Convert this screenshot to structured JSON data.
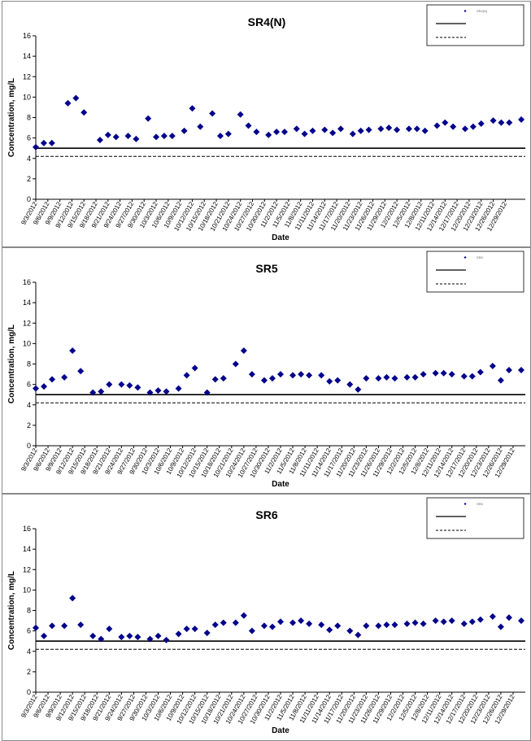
{
  "chart_data": [
    {
      "type": "scatter",
      "title": "SR4(N)",
      "xlabel": "Date",
      "ylabel": "Concentration, mg/L",
      "ylim": [
        0,
        16
      ],
      "yticks": [
        "0",
        "2",
        "4",
        "6",
        "8",
        "10",
        "12",
        "14",
        "16"
      ],
      "x_tick_labels": [
        "9/3/2012",
        "9/6/2012",
        "9/9/2012",
        "9/12/2012",
        "9/15/2012",
        "9/18/2012",
        "9/21/2012",
        "9/24/2012",
        "9/27/2012",
        "9/30/2012",
        "10/3/2012",
        "10/6/2012",
        "10/9/2012",
        "10/12/2012",
        "10/15/2012",
        "10/18/2012",
        "10/21/2012",
        "10/24/2012",
        "10/27/2012",
        "10/30/2012",
        "11/2/2012",
        "11/5/2012",
        "11/8/2012",
        "11/11/2012",
        "11/14/2012",
        "11/17/2012",
        "11/20/2012",
        "11/23/2012",
        "11/26/2012",
        "11/29/2012",
        "12/2/2012",
        "12/5/2012",
        "12/8/2012",
        "12/11/2012",
        "12/14/2012",
        "12/17/2012",
        "12/20/2012",
        "12/23/2012",
        "12/26/2012",
        "12/29/2012"
      ],
      "series": [
        {
          "name": "SR4(N)",
          "marker": "diamond",
          "color": "#00008B",
          "x": [
            "9/3/2012",
            "9/5/2012",
            "9/7/2012",
            "9/11/2012",
            "9/13/2012",
            "9/15/2012",
            "9/19/2012",
            "9/21/2012",
            "9/23/2012",
            "9/26/2012",
            "9/28/2012",
            "10/1/2012",
            "10/3/2012",
            "10/5/2012",
            "10/7/2012",
            "10/10/2012",
            "10/12/2012",
            "10/14/2012",
            "10/17/2012",
            "10/19/2012",
            "10/21/2012",
            "10/24/2012",
            "10/26/2012",
            "10/28/2012",
            "10/31/2012",
            "11/2/2012",
            "11/4/2012",
            "11/7/2012",
            "11/9/2012",
            "11/11/2012",
            "11/14/2012",
            "11/16/2012",
            "11/18/2012",
            "11/21/2012",
            "11/23/2012",
            "11/25/2012",
            "11/28/2012",
            "11/30/2012",
            "12/2/2012",
            "12/5/2012",
            "12/7/2012",
            "12/9/2012",
            "12/12/2012",
            "12/14/2012",
            "12/16/2012",
            "12/19/2012",
            "12/21/2012",
            "12/23/2012",
            "12/26/2012",
            "12/28/2012",
            "12/30/2012",
            "1/2/2013"
          ],
          "y": [
            5.1,
            5.5,
            5.5,
            9.4,
            9.9,
            8.5,
            5.8,
            6.3,
            6.1,
            6.2,
            5.9,
            7.9,
            6.1,
            6.2,
            6.2,
            6.7,
            8.9,
            7.1,
            8.4,
            6.2,
            6.4,
            8.3,
            7.2,
            6.6,
            6.3,
            6.6,
            6.6,
            6.9,
            6.4,
            6.7,
            6.8,
            6.5,
            6.9,
            6.4,
            6.7,
            6.8,
            6.9,
            7.0,
            6.8,
            6.9,
            6.9,
            6.7,
            7.2,
            7.5,
            7.1,
            6.9,
            7.1,
            7.4,
            7.7,
            7.5,
            7.5,
            7.8
          ]
        }
      ],
      "reference_lines": [
        {
          "value": 5.0,
          "style": "solid",
          "color": "#000000"
        },
        {
          "value": 4.2,
          "style": "dashed",
          "color": "#000000"
        }
      ],
      "legend": "top-right"
    },
    {
      "type": "scatter",
      "title": "SR5",
      "xlabel": "Date",
      "ylabel": "Concentration, mg/L",
      "ylim": [
        0,
        16
      ],
      "yticks": [
        "0",
        "2",
        "4",
        "6",
        "8",
        "10",
        "12",
        "14",
        "16"
      ],
      "x_tick_labels": [
        "9/3/2012",
        "9/6/2012",
        "9/9/2012",
        "9/12/2012",
        "9/15/2012",
        "9/18/2012",
        "9/21/2012",
        "9/24/2012",
        "9/27/2012",
        "9/30/2012",
        "10/3/2012",
        "10/6/2012",
        "10/9/2012",
        "10/12/2012",
        "10/15/2012",
        "10/18/2012",
        "10/21/2012",
        "10/24/2012",
        "10/27/2012",
        "10/30/2012",
        "11/2/2012",
        "11/5/2012",
        "11/8/2012",
        "11/11/2012",
        "11/14/2012",
        "11/17/2012",
        "11/20/2012",
        "11/23/2012",
        "11/26/2012",
        "11/29/2012",
        "12/2/2012",
        "12/5/2012",
        "12/8/2012",
        "12/11/2012",
        "12/14/2012",
        "12/17/2012",
        "12/20/2012",
        "12/23/2012",
        "12/26/2012",
        "12/29/2012"
      ],
      "series": [
        {
          "name": "SR5",
          "marker": "diamond",
          "color": "#00008B",
          "x": [
            "9/3/2012",
            "9/5/2012",
            "9/7/2012",
            "9/10/2012",
            "9/12/2012",
            "9/14/2012",
            "9/17/2012",
            "9/19/2012",
            "9/21/2012",
            "9/24/2012",
            "9/26/2012",
            "9/28/2012",
            "10/1/2012",
            "10/3/2012",
            "10/5/2012",
            "10/8/2012",
            "10/10/2012",
            "10/12/2012",
            "10/15/2012",
            "10/17/2012",
            "10/19/2012",
            "10/22/2012",
            "10/24/2012",
            "10/26/2012",
            "10/29/2012",
            "10/31/2012",
            "11/2/2012",
            "11/5/2012",
            "11/7/2012",
            "11/9/2012",
            "11/12/2012",
            "11/14/2012",
            "11/16/2012",
            "11/19/2012",
            "11/21/2012",
            "11/23/2012",
            "11/26/2012",
            "11/28/2012",
            "11/30/2012",
            "12/3/2012",
            "12/5/2012",
            "12/7/2012",
            "12/10/2012",
            "12/12/2012",
            "12/14/2012",
            "12/17/2012",
            "12/19/2012",
            "12/21/2012",
            "12/24/2012",
            "12/26/2012",
            "12/28/2012",
            "12/31/2012"
          ],
          "y": [
            5.6,
            5.8,
            6.5,
            6.7,
            9.3,
            7.3,
            5.2,
            5.3,
            6.0,
            6.0,
            5.9,
            5.7,
            5.2,
            5.4,
            5.3,
            5.6,
            6.9,
            7.6,
            5.2,
            6.5,
            6.6,
            8.0,
            9.3,
            7.0,
            6.4,
            6.6,
            7.0,
            6.9,
            7.0,
            6.9,
            6.9,
            6.3,
            6.4,
            6.0,
            5.5,
            6.6,
            6.6,
            6.7,
            6.6,
            6.7,
            6.7,
            7.0,
            7.1,
            7.1,
            7.0,
            6.8,
            6.8,
            7.2,
            7.8,
            6.4,
            7.4,
            7.4
          ]
        }
      ],
      "reference_lines": [
        {
          "value": 5.0,
          "style": "solid",
          "color": "#000000"
        },
        {
          "value": 4.2,
          "style": "dashed",
          "color": "#000000"
        }
      ],
      "legend": "top-right"
    },
    {
      "type": "scatter",
      "title": "SR6",
      "xlabel": "Date",
      "ylabel": "Concentration, mg/L",
      "ylim": [
        0,
        16
      ],
      "yticks": [
        "0",
        "2",
        "4",
        "6",
        "8",
        "10",
        "12",
        "14",
        "16"
      ],
      "x_tick_labels": [
        "9/3/2012",
        "9/6/2012",
        "9/9/2012",
        "9/12/2012",
        "9/15/2012",
        "9/18/2012",
        "9/21/2012",
        "9/24/2012",
        "9/27/2012",
        "9/30/2012",
        "10/3/2012",
        "10/6/2012",
        "10/9/2012",
        "10/12/2012",
        "10/15/2012",
        "10/18/2012",
        "10/21/2012",
        "10/24/2012",
        "10/27/2012",
        "10/30/2012",
        "11/2/2012",
        "11/5/2012",
        "11/8/2012",
        "11/11/2012",
        "11/14/2012",
        "11/17/2012",
        "11/20/2012",
        "11/23/2012",
        "11/26/2012",
        "11/29/2012",
        "12/2/2012",
        "12/5/2012",
        "12/8/2012",
        "12/11/2012",
        "12/14/2012",
        "12/17/2012",
        "12/20/2012",
        "12/23/2012",
        "12/26/2012",
        "12/29/2012"
      ],
      "series": [
        {
          "name": "SR6",
          "marker": "diamond",
          "color": "#00008B",
          "x": [
            "9/3/2012",
            "9/5/2012",
            "9/7/2012",
            "9/10/2012",
            "9/12/2012",
            "9/14/2012",
            "9/17/2012",
            "9/19/2012",
            "9/21/2012",
            "9/24/2012",
            "9/26/2012",
            "9/28/2012",
            "10/1/2012",
            "10/3/2012",
            "10/5/2012",
            "10/8/2012",
            "10/10/2012",
            "10/12/2012",
            "10/15/2012",
            "10/17/2012",
            "10/19/2012",
            "10/22/2012",
            "10/24/2012",
            "10/26/2012",
            "10/29/2012",
            "10/31/2012",
            "11/2/2012",
            "11/5/2012",
            "11/7/2012",
            "11/9/2012",
            "11/12/2012",
            "11/14/2012",
            "11/16/2012",
            "11/19/2012",
            "11/21/2012",
            "11/23/2012",
            "11/26/2012",
            "11/28/2012",
            "11/30/2012",
            "12/3/2012",
            "12/5/2012",
            "12/7/2012",
            "12/10/2012",
            "12/12/2012",
            "12/14/2012",
            "12/17/2012",
            "12/19/2012",
            "12/21/2012",
            "12/24/2012",
            "12/26/2012",
            "12/28/2012",
            "12/31/2012"
          ],
          "y": [
            6.3,
            5.5,
            6.5,
            6.5,
            9.2,
            6.6,
            5.5,
            5.2,
            6.2,
            5.4,
            5.5,
            5.4,
            5.2,
            5.5,
            5.1,
            5.7,
            6.2,
            6.2,
            5.8,
            6.6,
            6.8,
            6.8,
            7.5,
            6.0,
            6.5,
            6.4,
            6.9,
            6.8,
            7.0,
            6.7,
            6.6,
            6.1,
            6.5,
            6.0,
            5.6,
            6.5,
            6.5,
            6.6,
            6.6,
            6.7,
            6.8,
            6.7,
            7.0,
            6.9,
            7.0,
            6.7,
            6.9,
            7.1,
            7.4,
            6.4,
            7.3,
            7.0
          ]
        }
      ],
      "reference_lines": [
        {
          "value": 5.0,
          "style": "solid",
          "color": "#000000"
        },
        {
          "value": 4.2,
          "style": "dashed",
          "color": "#000000"
        }
      ],
      "legend": "top-right"
    }
  ]
}
